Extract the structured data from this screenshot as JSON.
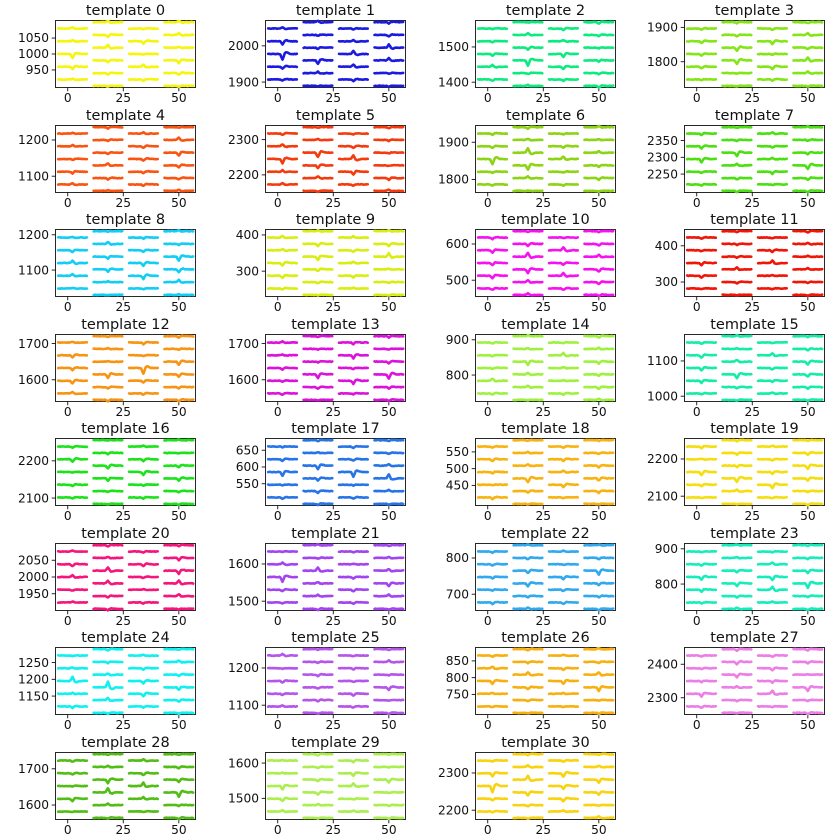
{
  "figure": {
    "background": "#ffffff",
    "description": "Grid of 31 spike-template waveform subplots, 4 columns by 8 rows (last row has 3 plots). Each subplot shows short horizontal waveform segments arranged in a staggered 4-column electrode layout; traces are flat lines with a small central spike deflection."
  },
  "chart_data": {
    "type": "line",
    "grid": false,
    "legend": "none",
    "layout": {
      "grid_rows": 8,
      "grid_cols": 4
    },
    "x": {
      "ticks": [
        0,
        25,
        50
      ],
      "lim": [
        -5.5,
        57.5
      ]
    },
    "trace_pattern": {
      "columns": 4,
      "rows_inner_columns": 5,
      "rows_outer_columns": 6,
      "shape": "flat line with small central negative spike"
    },
    "subplots": [
      {
        "title": "template 0",
        "color": "#f5f50d",
        "yticks": [
          950,
          1000,
          1050
        ],
        "ylim": [
          895,
          1105
        ]
      },
      {
        "title": "template 1",
        "color": "#1a1ae0",
        "yticks": [
          1900,
          2000
        ],
        "ylim": [
          1885,
          2070
        ]
      },
      {
        "title": "template 2",
        "color": "#0ceb7e",
        "yticks": [
          1400,
          1500
        ],
        "ylim": [
          1385,
          1575
        ]
      },
      {
        "title": "template 3",
        "color": "#84e617",
        "yticks": [
          1800,
          1900
        ],
        "ylim": [
          1725,
          1920
        ]
      },
      {
        "title": "template 4",
        "color": "#fa5510",
        "yticks": [
          1100,
          1200
        ],
        "ylim": [
          1055,
          1240
        ]
      },
      {
        "title": "template 5",
        "color": "#f53b0e",
        "yticks": [
          2200,
          2300
        ],
        "ylim": [
          2150,
          2340
        ]
      },
      {
        "title": "template 6",
        "color": "#8cd414",
        "yticks": [
          1800,
          1900
        ],
        "ylim": [
          1765,
          1945
        ]
      },
      {
        "title": "template 7",
        "color": "#4ce012",
        "yticks": [
          2250,
          2300,
          2350
        ],
        "ylim": [
          2195,
          2395
        ]
      },
      {
        "title": "template 8",
        "color": "#12cdf5",
        "yticks": [
          1100,
          1200
        ],
        "ylim": [
          1025,
          1215
        ]
      },
      {
        "title": "template 9",
        "color": "#d9ee10",
        "yticks": [
          300,
          400
        ],
        "ylim": [
          230,
          415
        ]
      },
      {
        "title": "template 10",
        "color": "#f711f0",
        "yticks": [
          500,
          600
        ],
        "ylim": [
          455,
          640
        ]
      },
      {
        "title": "template 11",
        "color": "#f01505",
        "yticks": [
          300,
          400
        ],
        "ylim": [
          260,
          445
        ]
      },
      {
        "title": "template 12",
        "color": "#f79413",
        "yticks": [
          1600,
          1700
        ],
        "ylim": [
          1540,
          1725
        ]
      },
      {
        "title": "template 13",
        "color": "#dc12dc",
        "yticks": [
          1600,
          1700
        ],
        "ylim": [
          1540,
          1725
        ]
      },
      {
        "title": "template 14",
        "color": "#9ef23e",
        "yticks": [
          800,
          900
        ],
        "ylim": [
          725,
          915
        ]
      },
      {
        "title": "template 15",
        "color": "#14eda8",
        "yticks": [
          1000,
          1100
        ],
        "ylim": [
          985,
          1175
        ]
      },
      {
        "title": "template 16",
        "color": "#1ae31a",
        "yticks": [
          2100,
          2200
        ],
        "ylim": [
          2080,
          2260
        ]
      },
      {
        "title": "template 17",
        "color": "#2674e8",
        "yticks": [
          550,
          600,
          650
        ],
        "ylim": [
          485,
          685
        ]
      },
      {
        "title": "template 18",
        "color": "#f8b311",
        "yticks": [
          450,
          500,
          550
        ],
        "ylim": [
          390,
          590
        ]
      },
      {
        "title": "template 19",
        "color": "#f5de0e",
        "yticks": [
          2100,
          2200
        ],
        "ylim": [
          2075,
          2255
        ]
      },
      {
        "title": "template 20",
        "color": "#f5157c",
        "yticks": [
          1950,
          2000,
          2050
        ],
        "ylim": [
          1900,
          2100
        ]
      },
      {
        "title": "template 21",
        "color": "#a244f0",
        "yticks": [
          1500,
          1600
        ],
        "ylim": [
          1475,
          1655
        ]
      },
      {
        "title": "template 22",
        "color": "#30a9ee",
        "yticks": [
          700,
          800
        ],
        "ylim": [
          655,
          840
        ]
      },
      {
        "title": "template 23",
        "color": "#15eebc",
        "yticks": [
          800,
          900
        ],
        "ylim": [
          725,
          915
        ]
      },
      {
        "title": "template 24",
        "color": "#0ff0f0",
        "yticks": [
          1150,
          1200,
          1250
        ],
        "ylim": [
          1095,
          1295
        ]
      },
      {
        "title": "template 25",
        "color": "#b455eb",
        "yticks": [
          1100,
          1200
        ],
        "ylim": [
          1075,
          1255
        ]
      },
      {
        "title": "template 26",
        "color": "#f8b011",
        "yticks": [
          750,
          800,
          850
        ],
        "ylim": [
          690,
          890
        ]
      },
      {
        "title": "template 27",
        "color": "#ec7ee6",
        "yticks": [
          2300,
          2400
        ],
        "ylim": [
          2250,
          2450
        ]
      },
      {
        "title": "template 28",
        "color": "#51bd15",
        "yticks": [
          1600,
          1700
        ],
        "ylim": [
          1560,
          1745
        ]
      },
      {
        "title": "template 29",
        "color": "#abee4e",
        "yticks": [
          1500,
          1600
        ],
        "ylim": [
          1440,
          1630
        ]
      },
      {
        "title": "template 30",
        "color": "#f8d30e",
        "yticks": [
          2200,
          2300
        ],
        "ylim": [
          2175,
          2355
        ]
      }
    ]
  }
}
